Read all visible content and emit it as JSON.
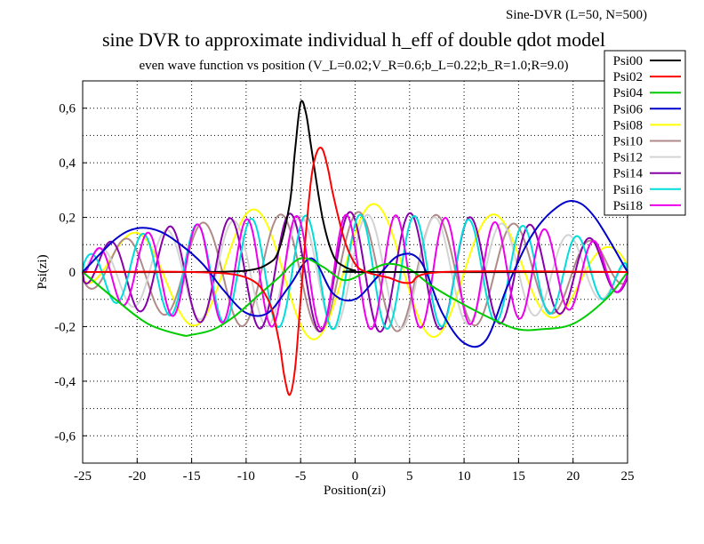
{
  "corner_label": "Sine-DVR (L=50, N=500)",
  "chart_data": {
    "type": "line",
    "title": "sine DVR to approximate individual h_eff of double qdot model",
    "subtitle": "even wave function vs position (V_L=0.02;V_R=0.6;b_L=0.22;b_R=1.0;R=9.0)",
    "xlabel": "Position(zi)",
    "ylabel": "Psi(zi)",
    "xlim": [
      -25,
      25
    ],
    "ylim": [
      -0.7,
      0.7
    ],
    "xticks": [
      -25,
      -20,
      -15,
      -10,
      -5,
      0,
      5,
      10,
      15,
      20,
      25
    ],
    "xtick_labels": [
      "-25",
      "-20",
      "-15",
      "-10",
      "-5",
      "0",
      "5",
      "10",
      "15",
      "20",
      "25"
    ],
    "yticks": [
      -0.6,
      -0.4,
      -0.2,
      0,
      0.2,
      0.4,
      0.6
    ],
    "ytick_labels": [
      "-0,6",
      "-0,4",
      "-0,2",
      "0",
      "0,2",
      "0,4",
      "0,6"
    ],
    "grid": true,
    "legend_position": "top-right",
    "series": [
      {
        "name": "Psi00",
        "color": "#000000",
        "x": [
          -25,
          -15,
          -10,
          -8,
          -7,
          -6,
          -5.5,
          -5,
          -4.5,
          -4,
          -3,
          -2,
          -1,
          0,
          1,
          25
        ],
        "y": [
          0,
          0,
          0.005,
          0.03,
          0.08,
          0.25,
          0.45,
          0.62,
          0.58,
          0.45,
          0.2,
          0.06,
          0.02,
          0.005,
          0,
          0
        ]
      },
      {
        "name": "Psi02",
        "color": "#ff0000",
        "x": [
          -25,
          -15,
          -10,
          -8,
          -7,
          -6.5,
          -6,
          -5.5,
          -5,
          -4.5,
          -4,
          -3.5,
          -3,
          -2.5,
          -2,
          -1,
          0,
          1,
          3,
          5,
          8,
          25
        ],
        "y": [
          0,
          0,
          -0.02,
          -0.1,
          -0.25,
          -0.38,
          -0.45,
          -0.35,
          -0.1,
          0.15,
          0.35,
          0.44,
          0.45,
          0.38,
          0.28,
          0.12,
          0.03,
          0,
          -0.02,
          -0.04,
          0,
          0
        ]
      },
      {
        "name": "Psi04",
        "color": "#00cc00",
        "x": [
          -25,
          -22,
          -19,
          -16,
          -15,
          -13,
          -11,
          -9,
          -7,
          -5,
          -3,
          -1,
          1,
          3,
          5,
          7,
          10,
          13,
          15,
          17,
          20,
          23,
          25
        ],
        "y": [
          0,
          -0.1,
          -0.19,
          -0.23,
          -0.23,
          -0.21,
          -0.16,
          -0.09,
          -0.02,
          0.05,
          0.02,
          -0.03,
          0.0,
          0.03,
          0.01,
          -0.05,
          -0.12,
          -0.18,
          -0.21,
          -0.21,
          -0.19,
          -0.1,
          0
        ]
      },
      {
        "name": "Psi06",
        "color": "#0000cc",
        "x": [
          -25,
          -22,
          -20,
          -18,
          -16,
          -14,
          -12,
          -10,
          -8,
          -6,
          -4,
          -2,
          0,
          2,
          4,
          6,
          8,
          10,
          12,
          14,
          16,
          18,
          20,
          22,
          25
        ],
        "y": [
          0,
          0.12,
          0.16,
          0.15,
          0.1,
          0.03,
          -0.07,
          -0.15,
          -0.15,
          -0.05,
          0.05,
          -0.08,
          -0.1,
          -0.02,
          0.06,
          0.04,
          -0.15,
          -0.26,
          -0.25,
          -0.05,
          0.12,
          0.22,
          0.26,
          0.2,
          0
        ]
      },
      {
        "name": "Psi08",
        "color": "#ffff00",
        "fn": {
          "amp": 0.25,
          "k": 0.567,
          "phase": 0.6,
          "env": 0.8
        }
      },
      {
        "name": "Psi10",
        "color": "#b08a8a",
        "fn": {
          "amp": 0.22,
          "k": 0.88,
          "phase": 1.3,
          "env": 0.85
        }
      },
      {
        "name": "Psi12",
        "color": "#d3d3d3",
        "fn": {
          "amp": 0.21,
          "k": 1.02,
          "phase": 0.4,
          "env": 0.9
        }
      },
      {
        "name": "Psi14",
        "color": "#8800aa",
        "fn": {
          "amp": 0.22,
          "k": 1.14,
          "phase": 2.1,
          "env": 0.95
        }
      },
      {
        "name": "Psi16",
        "color": "#00dddd",
        "fn": {
          "amp": 0.21,
          "k": 1.26,
          "phase": 1.0,
          "env": 0.95
        }
      },
      {
        "name": "Psi18",
        "color": "#ee00ee",
        "fn": {
          "amp": 0.21,
          "k": 1.38,
          "phase": 2.7,
          "env": 0.95
        }
      }
    ]
  }
}
